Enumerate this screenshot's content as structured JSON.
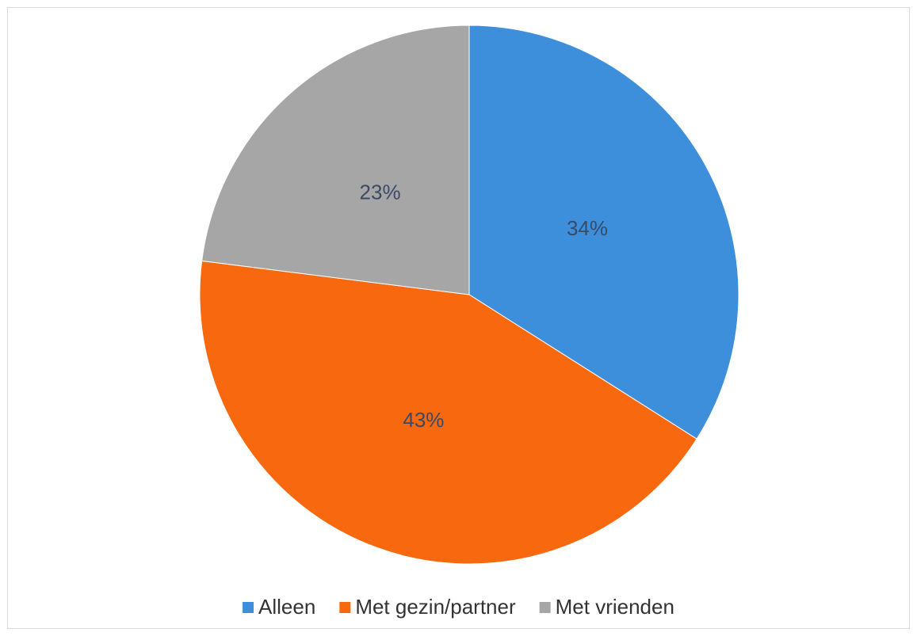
{
  "chart_data": {
    "type": "pie",
    "categories": [
      "Alleen",
      "Met gezin/partner",
      "Met vrienden"
    ],
    "values": [
      34,
      43,
      23
    ],
    "value_labels": [
      "34%",
      "43%",
      "23%"
    ],
    "colors": [
      "#3d8fdc",
      "#f7680f",
      "#a6a6a6"
    ],
    "legend": "bottom"
  }
}
